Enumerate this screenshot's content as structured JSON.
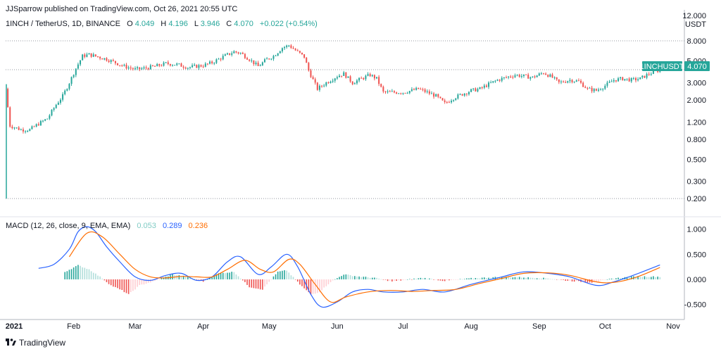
{
  "header": {
    "publisher": "JJSparrow published on TradingView.com, Oct 26, 2021 20:55 UTC"
  },
  "legend": {
    "symbol": "1INCH / TetherUS, 1D, BINANCE",
    "o_label": "O",
    "o_value": "4.049",
    "h_label": "H",
    "h_value": "4.196",
    "l_label": "L",
    "l_value": "3.946",
    "c_label": "C",
    "c_value": "4.070",
    "change": "+0.022 (+0.54%)"
  },
  "price_axis": {
    "unit_top": "12.000",
    "unit_label": "USDT",
    "ticks": [
      "8.000",
      "5.000",
      "3.000",
      "2.000",
      "1.200",
      "0.800",
      "0.500",
      "0.300",
      "0.200"
    ]
  },
  "last_price_tag": {
    "label": "1INCHUSDT",
    "value": "4.070"
  },
  "macd": {
    "label": "MACD (12, 26, close, 9, EMA, EMA)",
    "hist_value": "0.053",
    "macd_value": "0.289",
    "signal_value": "0.236",
    "ticks": [
      "1.000",
      "0.500",
      "0.000",
      "-0.500"
    ]
  },
  "time_axis": {
    "labels": [
      "2021",
      "Feb",
      "Mar",
      "Apr",
      "May",
      "Jun",
      "Jul",
      "Aug",
      "Sep",
      "Oct",
      "Nov"
    ]
  },
  "brand": {
    "name": "TradingView",
    "logo": "tradingview-logo"
  },
  "colors": {
    "up": "#26a69a",
    "down": "#ef5350",
    "hist_up_strong": "#26a69a",
    "hist_up_weak": "#b2dfdb",
    "hist_down_strong": "#ef5350",
    "hist_down_weak": "#ffcdd2",
    "macd_line": "#2962ff",
    "signal_line": "#ff6d00",
    "grid_dotted": "#9598a1",
    "axis": "#b2b5be"
  },
  "chart_data": [
    {
      "type": "candlestick",
      "title": "1INCH / TetherUS, 1D, BINANCE",
      "scale": "log",
      "ylim": [
        0.2,
        12.0
      ],
      "y_ticks": [
        8.0,
        5.0,
        3.0,
        2.0,
        1.2,
        0.8,
        0.5,
        0.3,
        0.2
      ],
      "dotted_levels": [
        8.0,
        4.07,
        0.2
      ],
      "x_labels": [
        "2021",
        "Feb",
        "Mar",
        "Apr",
        "May",
        "Jun",
        "Jul",
        "Aug",
        "Sep",
        "Oct",
        "Nov"
      ],
      "last_close": 4.07,
      "close_path": [
        [
          "2021-01-01",
          2.6
        ],
        [
          "2021-01-03",
          1.1
        ],
        [
          "2021-01-08",
          1.0
        ],
        [
          "2021-01-12",
          1.0
        ],
        [
          "2021-01-16",
          1.15
        ],
        [
          "2021-01-20",
          1.3
        ],
        [
          "2021-01-24",
          1.8
        ],
        [
          "2021-01-27",
          2.2
        ],
        [
          "2021-01-30",
          3.0
        ],
        [
          "2021-02-02",
          4.2
        ],
        [
          "2021-02-05",
          5.6
        ],
        [
          "2021-02-08",
          5.8
        ],
        [
          "2021-02-12",
          5.5
        ],
        [
          "2021-02-16",
          5.2
        ],
        [
          "2021-02-20",
          4.8
        ],
        [
          "2021-02-24",
          4.4
        ],
        [
          "2021-03-01",
          4.1
        ],
        [
          "2021-03-05",
          4.2
        ],
        [
          "2021-03-10",
          4.4
        ],
        [
          "2021-03-15",
          4.7
        ],
        [
          "2021-03-20",
          4.6
        ],
        [
          "2021-03-25",
          4.3
        ],
        [
          "2021-04-01",
          4.5
        ],
        [
          "2021-04-05",
          4.8
        ],
        [
          "2021-04-10",
          5.5
        ],
        [
          "2021-04-15",
          6.2
        ],
        [
          "2021-04-18",
          6.0
        ],
        [
          "2021-04-22",
          5.2
        ],
        [
          "2021-04-26",
          4.4
        ],
        [
          "2021-04-30",
          5.2
        ],
        [
          "2021-05-03",
          5.6
        ],
        [
          "2021-05-07",
          6.8
        ],
        [
          "2021-05-10",
          7.2
        ],
        [
          "2021-05-13",
          6.4
        ],
        [
          "2021-05-17",
          5.5
        ],
        [
          "2021-05-19",
          4.0
        ],
        [
          "2021-05-21",
          3.2
        ],
        [
          "2021-05-23",
          2.6
        ],
        [
          "2021-05-27",
          3.0
        ],
        [
          "2021-06-01",
          3.5
        ],
        [
          "2021-06-04",
          3.7
        ],
        [
          "2021-06-08",
          3.0
        ],
        [
          "2021-06-12",
          3.3
        ],
        [
          "2021-06-16",
          3.6
        ],
        [
          "2021-06-19",
          3.3
        ],
        [
          "2021-06-22",
          2.4
        ],
        [
          "2021-06-26",
          2.4
        ],
        [
          "2021-07-01",
          2.4
        ],
        [
          "2021-07-05",
          2.5
        ],
        [
          "2021-07-08",
          2.6
        ],
        [
          "2021-07-12",
          2.4
        ],
        [
          "2021-07-16",
          2.2
        ],
        [
          "2021-07-20",
          1.85
        ],
        [
          "2021-07-24",
          2.1
        ],
        [
          "2021-07-28",
          2.3
        ],
        [
          "2021-08-01",
          2.5
        ],
        [
          "2021-08-05",
          2.6
        ],
        [
          "2021-08-09",
          2.9
        ],
        [
          "2021-08-13",
          3.2
        ],
        [
          "2021-08-17",
          3.4
        ],
        [
          "2021-08-21",
          3.6
        ],
        [
          "2021-08-25",
          3.5
        ],
        [
          "2021-08-29",
          3.4
        ],
        [
          "2021-09-03",
          3.8
        ],
        [
          "2021-09-07",
          3.4
        ],
        [
          "2021-09-10",
          3.0
        ],
        [
          "2021-09-15",
          3.2
        ],
        [
          "2021-09-19",
          3.1
        ],
        [
          "2021-09-23",
          2.6
        ],
        [
          "2021-09-27",
          2.5
        ],
        [
          "2021-10-01",
          2.8
        ],
        [
          "2021-10-05",
          3.2
        ],
        [
          "2021-10-09",
          3.3
        ],
        [
          "2021-10-13",
          3.2
        ],
        [
          "2021-10-17",
          3.3
        ],
        [
          "2021-10-21",
          3.7
        ],
        [
          "2021-10-26",
          4.07
        ]
      ]
    },
    {
      "type": "macd",
      "title": "MACD (12, 26, close, 9, EMA, EMA)",
      "ylim": [
        -0.8,
        1.2
      ],
      "y_ticks": [
        1.0,
        0.5,
        0.0,
        -0.5
      ],
      "last_values": {
        "histogram": 0.053,
        "macd": 0.289,
        "signal": 0.236
      },
      "series": [
        {
          "name": "MACD",
          "points": [
            [
              "2021-01-16",
              0.22
            ],
            [
              "2021-01-23",
              0.3
            ],
            [
              "2021-01-30",
              0.6
            ],
            [
              "2021-02-03",
              0.95
            ],
            [
              "2021-02-07",
              1.05
            ],
            [
              "2021-02-11",
              0.95
            ],
            [
              "2021-02-16",
              0.65
            ],
            [
              "2021-02-22",
              0.35
            ],
            [
              "2021-03-01",
              0.05
            ],
            [
              "2021-03-08",
              -0.02
            ],
            [
              "2021-03-15",
              0.08
            ],
            [
              "2021-03-22",
              0.12
            ],
            [
              "2021-03-29",
              -0.02
            ],
            [
              "2021-04-05",
              0.05
            ],
            [
              "2021-04-12",
              0.35
            ],
            [
              "2021-04-18",
              0.45
            ],
            [
              "2021-04-26",
              0.1
            ],
            [
              "2021-05-02",
              0.25
            ],
            [
              "2021-05-09",
              0.5
            ],
            [
              "2021-05-14",
              0.25
            ],
            [
              "2021-05-20",
              -0.3
            ],
            [
              "2021-05-25",
              -0.55
            ],
            [
              "2021-06-01",
              -0.45
            ],
            [
              "2021-06-08",
              -0.25
            ],
            [
              "2021-06-15",
              -0.2
            ],
            [
              "2021-06-22",
              -0.25
            ],
            [
              "2021-07-01",
              -0.25
            ],
            [
              "2021-07-10",
              -0.2
            ],
            [
              "2021-07-20",
              -0.25
            ],
            [
              "2021-08-01",
              -0.1
            ],
            [
              "2021-08-15",
              0.05
            ],
            [
              "2021-08-25",
              0.15
            ],
            [
              "2021-09-05",
              0.12
            ],
            [
              "2021-09-15",
              0.05
            ],
            [
              "2021-09-27",
              -0.12
            ],
            [
              "2021-10-05",
              -0.05
            ],
            [
              "2021-10-15",
              0.1
            ],
            [
              "2021-10-26",
              0.289
            ]
          ]
        },
        {
          "name": "Signal",
          "points": [
            [
              "2021-01-30",
              0.45
            ],
            [
              "2021-02-07",
              0.92
            ],
            [
              "2021-02-14",
              0.85
            ],
            [
              "2021-02-22",
              0.5
            ],
            [
              "2021-03-01",
              0.2
            ],
            [
              "2021-03-08",
              0.05
            ],
            [
              "2021-03-15",
              0.03
            ],
            [
              "2021-03-22",
              0.06
            ],
            [
              "2021-03-29",
              0.05
            ],
            [
              "2021-04-05",
              0.05
            ],
            [
              "2021-04-12",
              0.2
            ],
            [
              "2021-04-20",
              0.38
            ],
            [
              "2021-04-27",
              0.2
            ],
            [
              "2021-05-03",
              0.15
            ],
            [
              "2021-05-10",
              0.4
            ],
            [
              "2021-05-15",
              0.3
            ],
            [
              "2021-05-22",
              -0.1
            ],
            [
              "2021-05-29",
              -0.45
            ],
            [
              "2021-06-05",
              -0.35
            ],
            [
              "2021-06-15",
              -0.25
            ],
            [
              "2021-06-25",
              -0.22
            ],
            [
              "2021-07-05",
              -0.24
            ],
            [
              "2021-07-15",
              -0.22
            ],
            [
              "2021-07-25",
              -0.2
            ],
            [
              "2021-08-05",
              -0.08
            ],
            [
              "2021-08-15",
              0.02
            ],
            [
              "2021-08-25",
              0.12
            ],
            [
              "2021-09-05",
              0.13
            ],
            [
              "2021-09-15",
              0.08
            ],
            [
              "2021-09-27",
              -0.05
            ],
            [
              "2021-10-05",
              -0.06
            ],
            [
              "2021-10-15",
              0.04
            ],
            [
              "2021-10-26",
              0.236
            ]
          ]
        },
        {
          "name": "Histogram",
          "points": [
            [
              "2021-01-28",
              0.15
            ],
            [
              "2021-02-03",
              0.28
            ],
            [
              "2021-02-08",
              0.2
            ],
            [
              "2021-02-14",
              0.02
            ],
            [
              "2021-02-18",
              -0.12
            ],
            [
              "2021-02-23",
              -0.22
            ],
            [
              "2021-02-26",
              -0.3
            ],
            [
              "2021-03-03",
              -0.12
            ],
            [
              "2021-03-10",
              -0.03
            ],
            [
              "2021-03-18",
              0.1
            ],
            [
              "2021-03-25",
              0.05
            ],
            [
              "2021-04-01",
              -0.04
            ],
            [
              "2021-04-08",
              0.12
            ],
            [
              "2021-04-15",
              0.15
            ],
            [
              "2021-04-22",
              -0.15
            ],
            [
              "2021-04-28",
              -0.2
            ],
            [
              "2021-05-05",
              0.15
            ],
            [
              "2021-05-09",
              0.18
            ],
            [
              "2021-05-15",
              -0.1
            ],
            [
              "2021-05-20",
              -0.3
            ],
            [
              "2021-05-24",
              -0.25
            ],
            [
              "2021-05-29",
              -0.05
            ],
            [
              "2021-06-04",
              0.1
            ],
            [
              "2021-06-10",
              0.06
            ],
            [
              "2021-06-18",
              0.03
            ],
            [
              "2021-06-26",
              -0.04
            ],
            [
              "2021-07-10",
              0.03
            ],
            [
              "2021-07-20",
              -0.03
            ],
            [
              "2021-08-01",
              0.02
            ],
            [
              "2021-08-15",
              0.05
            ],
            [
              "2021-08-25",
              0.04
            ],
            [
              "2021-09-05",
              0.02
            ],
            [
              "2021-09-15",
              -0.03
            ],
            [
              "2021-09-25",
              -0.06
            ],
            [
              "2021-10-05",
              0.02
            ],
            [
              "2021-10-15",
              0.06
            ],
            [
              "2021-10-26",
              0.053
            ]
          ]
        }
      ]
    }
  ]
}
